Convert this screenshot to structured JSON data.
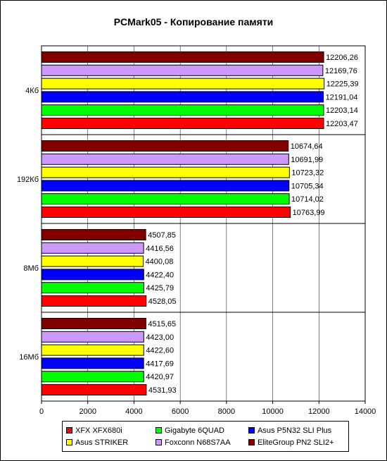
{
  "chart_data": {
    "type": "bar",
    "orientation": "horizontal",
    "title": "PCMark05 - Копирование памяти",
    "categories": [
      "4Кб",
      "192Кб",
      "8Мб",
      "16Мб"
    ],
    "xlim": [
      0,
      14000
    ],
    "xticks": [
      "0",
      "2000",
      "4000",
      "6000",
      "8000",
      "10000",
      "12000",
      "14000"
    ],
    "grid": "vertical",
    "legend_position": "bottom",
    "series": [
      {
        "name": "XFX XFX680i",
        "color": "#ff0000",
        "values": [
          12203.47,
          10763.99,
          4528.05,
          4531.93
        ],
        "labels": [
          "12203,47",
          "10763,99",
          "4528,05",
          "4531,93"
        ]
      },
      {
        "name": "Gigabyte 6QUAD",
        "color": "#00ff00",
        "values": [
          12203.14,
          10714.02,
          4425.79,
          4420.97
        ],
        "labels": [
          "12203,14",
          "10714,02",
          "4425,79",
          "4420,97"
        ]
      },
      {
        "name": "Asus P5N32 SLI Plus",
        "color": "#0000ff",
        "values": [
          12191.04,
          10705.34,
          4422.4,
          4417.69
        ],
        "labels": [
          "12191,04",
          "10705,34",
          "4422,40",
          "4417,69"
        ]
      },
      {
        "name": "Asus STRIKER",
        "color": "#ffff00",
        "values": [
          12225.39,
          10723.32,
          4400.08,
          4422.6
        ],
        "labels": [
          "12225,39",
          "10723,32",
          "4400,08",
          "4422,60"
        ]
      },
      {
        "name": "Foxconn N68S7AA",
        "color": "#cc99ff",
        "values": [
          12169.76,
          10691.99,
          4416.56,
          4423.0
        ],
        "labels": [
          "12169,76",
          "10691,99",
          "4416,56",
          "4423,00"
        ]
      },
      {
        "name": "EliteGroup PN2 SLI2+",
        "color": "#800000",
        "values": [
          12206.26,
          10674.64,
          4507.85,
          4515.65
        ],
        "labels": [
          "12206,26",
          "10674,64",
          "4507,85",
          "4515,65"
        ]
      }
    ]
  }
}
